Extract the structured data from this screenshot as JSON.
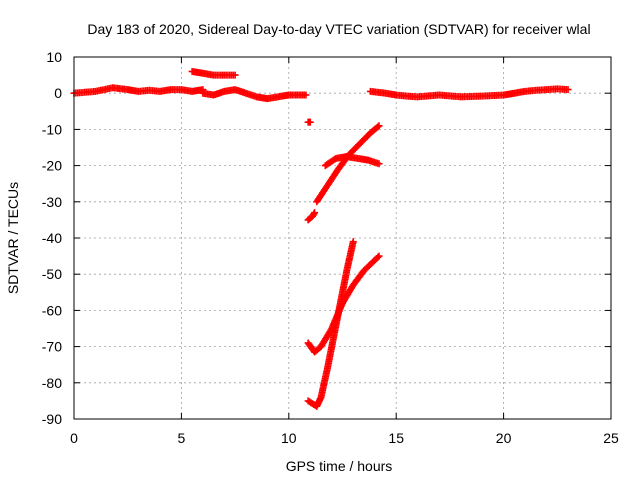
{
  "chart_data": {
    "type": "scatter",
    "title": "Day 183 of 2020, Sidereal Day-to-day VTEC variation (SDTVAR) for receiver wlal",
    "xlabel": "GPS time / hours",
    "ylabel": "SDTVAR / TECUs",
    "xlim": [
      0,
      25
    ],
    "ylim": [
      -90,
      10
    ],
    "xticks": [
      0,
      5,
      10,
      15,
      20,
      25
    ],
    "yticks": [
      10,
      0,
      -10,
      -20,
      -30,
      -40,
      -50,
      -60,
      -70,
      -80,
      -90
    ],
    "grid": true,
    "marker": "plus",
    "color": "#ff0000",
    "series": [
      {
        "segments": [
          {
            "x": [
              0.0,
              1.0,
              1.8,
              2.5,
              3.0,
              3.5,
              4.0,
              4.5,
              5.0,
              5.5,
              6.0
            ],
            "y": [
              0.0,
              0.5,
              1.5,
              1.0,
              0.5,
              0.8,
              0.5,
              1.0,
              1.0,
              0.5,
              1.0
            ]
          },
          {
            "x": [
              6.0,
              6.5,
              7.0,
              7.5,
              8.0,
              8.5,
              9.0,
              9.5,
              10.0,
              10.8
            ],
            "y": [
              0.0,
              -0.5,
              0.5,
              1.0,
              0.0,
              -1.0,
              -1.5,
              -1.0,
              -0.5,
              -0.5
            ]
          },
          {
            "x": [
              5.5,
              6.0,
              6.5,
              7.0,
              7.5
            ],
            "y": [
              6.0,
              5.5,
              5.0,
              5.0,
              5.0
            ]
          },
          {
            "x": [
              10.9,
              11.0
            ],
            "y": [
              -8.0,
              -8.0
            ]
          },
          {
            "x": [
              11.3,
              11.8,
              12.3,
              12.8,
              13.3,
              13.8,
              14.2
            ],
            "y": [
              -30.0,
              -25.5,
              -21.0,
              -17.0,
              -14.0,
              -11.0,
              -9.0
            ]
          },
          {
            "x": [
              11.7,
              12.2,
              12.7,
              13.2,
              13.7,
              14.2
            ],
            "y": [
              -20.0,
              -18.0,
              -17.5,
              -18.0,
              -18.5,
              -19.5
            ]
          },
          {
            "x": [
              10.9,
              11.1,
              11.2
            ],
            "y": [
              -35.0,
              -34.0,
              -33.0
            ]
          },
          {
            "x": [
              10.9,
              11.2,
              11.5,
              12.0,
              12.5,
              13.0,
              13.5,
              14.2
            ],
            "y": [
              -69.0,
              -71.5,
              -70.0,
              -65.0,
              -58.0,
              -53.0,
              -49.0,
              -45.0
            ]
          },
          {
            "x": [
              10.9,
              11.3,
              11.5,
              11.8,
              12.1,
              12.4,
              12.7,
              13.0
            ],
            "y": [
              -85.0,
              -86.5,
              -84.0,
              -76.0,
              -67.0,
              -58.0,
              -49.0,
              -41.0
            ]
          },
          {
            "x": [
              13.8,
              14.5,
              15.0,
              15.5,
              16.0,
              17.0,
              18.0,
              19.0,
              20.0,
              20.5,
              21.0,
              21.5,
              22.0,
              22.5,
              23.0
            ],
            "y": [
              0.5,
              0.0,
              -0.5,
              -0.8,
              -1.0,
              -0.5,
              -1.0,
              -0.8,
              -0.5,
              0.0,
              0.5,
              0.8,
              1.0,
              1.2,
              1.0
            ]
          }
        ]
      }
    ]
  }
}
